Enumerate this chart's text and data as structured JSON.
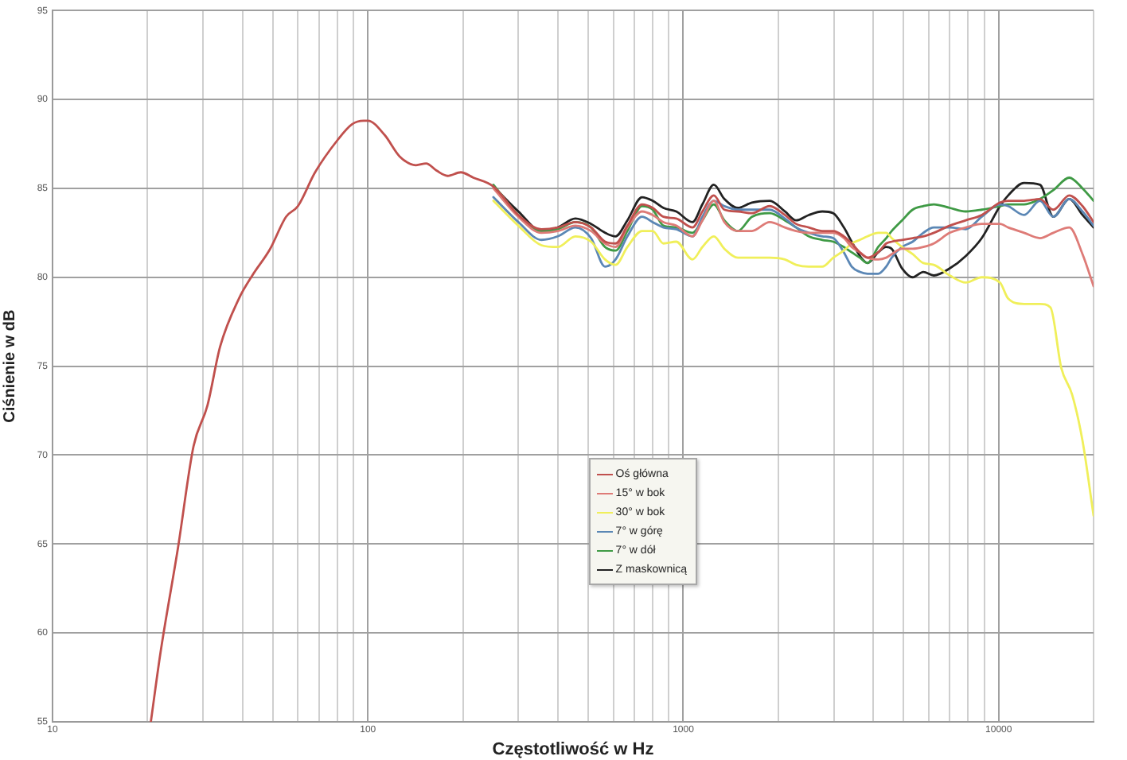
{
  "chart_data": {
    "type": "line",
    "xlabel": "Częstotliwość w Hz",
    "ylabel": "Ciśnienie w dB",
    "log": "x",
    "xlim": [
      10,
      20000
    ],
    "ylim": [
      55,
      95
    ],
    "xticks": [
      10,
      {
        "value": 20,
        "label": null
      },
      {
        "value": 30,
        "label": null
      },
      {
        "value": 40,
        "label": null
      },
      {
        "value": 50,
        "label": null
      },
      {
        "value": 60,
        "label": null
      },
      {
        "value": 70,
        "label": null
      },
      {
        "value": 80,
        "label": null
      },
      {
        "value": 90,
        "label": null
      },
      100,
      {
        "value": 200,
        "label": null
      },
      {
        "value": 300,
        "label": null
      },
      {
        "value": 400,
        "label": null
      },
      {
        "value": 500,
        "label": null
      },
      {
        "value": 600,
        "label": null
      },
      {
        "value": 700,
        "label": null
      },
      {
        "value": 800,
        "label": null
      },
      {
        "value": 900,
        "label": null
      },
      1000,
      {
        "value": 2000,
        "label": null
      },
      {
        "value": 3000,
        "label": null
      },
      {
        "value": 4000,
        "label": null
      },
      {
        "value": 5000,
        "label": null
      },
      {
        "value": 6000,
        "label": null
      },
      {
        "value": 7000,
        "label": null
      },
      {
        "value": 8000,
        "label": null
      },
      {
        "value": 9000,
        "label": null
      },
      10000,
      {
        "value": 20000,
        "label": null
      }
    ],
    "yticks": [
      55,
      60,
      65,
      70,
      75,
      80,
      85,
      90,
      95
    ],
    "grid": true,
    "legend": "center",
    "marker": "none",
    "line_style": "solid",
    "series": [
      {
        "name": "Oś główna",
        "color": "#c0504d",
        "x": [
          20.5,
          22,
          25,
          28,
          31,
          34,
          39,
          43,
          49,
          55,
          60,
          68,
          80,
          89,
          97,
          100,
          113,
          126,
          142,
          153,
          165,
          179,
          197,
          216,
          250,
          300,
          355,
          400,
          455,
          510,
          565,
          610,
          665,
          740,
          800,
          865,
          950,
          1070,
          1150,
          1250,
          1350,
          1490,
          1650,
          1880,
          2100,
          2280,
          2500,
          2760,
          2990,
          3230,
          3420,
          3630,
          3840,
          4150,
          4400,
          4580,
          4940,
          5340,
          5770,
          6230,
          7000,
          7870,
          8840,
          10100,
          10720,
          12040,
          13520,
          14910,
          16750,
          18450,
          20000
        ],
        "values": [
          55,
          58.9,
          64.8,
          70.5,
          72.8,
          76.1,
          78.8,
          80.1,
          81.6,
          83.4,
          84,
          85.9,
          87.7,
          88.6,
          88.8,
          88.8,
          88,
          86.8,
          86.3,
          86.4,
          86,
          85.7,
          85.9,
          85.6,
          85.1,
          83.5,
          82.7,
          82.8,
          83.1,
          82.8,
          82,
          81.9,
          82.9,
          84.1,
          83.9,
          83.4,
          83.3,
          82.8,
          83.7,
          84.6,
          83.8,
          83.7,
          83.6,
          84,
          83.5,
          83,
          82.8,
          82.6,
          82.6,
          82.3,
          81.9,
          81.4,
          81.1,
          81.4,
          81.9,
          82,
          82.1,
          82.2,
          82.3,
          82.5,
          82.9,
          83.2,
          83.5,
          84.2,
          84.3,
          84.3,
          84.4,
          83.8,
          84.6,
          84,
          83.1
        ]
      },
      {
        "name": "15° w bok",
        "color": "#de7b77",
        "x": [
          250,
          300,
          355,
          400,
          455,
          510,
          565,
          610,
          665,
          740,
          800,
          865,
          950,
          1070,
          1150,
          1250,
          1350,
          1490,
          1650,
          1880,
          2100,
          2280,
          2500,
          2760,
          2990,
          3230,
          3420,
          3630,
          3840,
          4150,
          4400,
          4580,
          4940,
          5340,
          5770,
          6230,
          7000,
          7870,
          8840,
          10100,
          10720,
          12040,
          13520,
          14910,
          16750,
          18450,
          20000
        ],
        "values": [
          85,
          83.4,
          82.5,
          82.6,
          82.9,
          82.6,
          81.9,
          81.7,
          82.8,
          83.7,
          83.5,
          83.1,
          82.9,
          82.3,
          83.2,
          84.3,
          83.1,
          82.6,
          82.6,
          83.1,
          82.8,
          82.6,
          82.5,
          82.5,
          82.5,
          82.2,
          81.7,
          81.4,
          81.1,
          81,
          81.1,
          81.3,
          81.6,
          81.6,
          81.7,
          81.9,
          82.5,
          82.8,
          83,
          83,
          82.8,
          82.5,
          82.2,
          82.5,
          82.8,
          81.3,
          79.5
        ]
      },
      {
        "name": "30° w bok",
        "color": "#f0ef5a",
        "x": [
          250,
          300,
          355,
          400,
          455,
          510,
          565,
          610,
          665,
          740,
          800,
          865,
          950,
          1070,
          1150,
          1250,
          1350,
          1490,
          1650,
          1880,
          2100,
          2280,
          2500,
          2760,
          2990,
          3230,
          3420,
          3630,
          3840,
          4150,
          4400,
          4580,
          4940,
          5340,
          5770,
          6230,
          7000,
          7870,
          8840,
          10100,
          10720,
          12040,
          13520,
          14600,
          15800,
          17100,
          18450,
          20000
        ],
        "values": [
          84.3,
          82.9,
          81.8,
          81.7,
          82.3,
          82,
          81,
          80.7,
          81.7,
          82.6,
          82.6,
          81.9,
          82,
          81,
          81.7,
          82.3,
          81.6,
          81.1,
          81.1,
          81.1,
          81,
          80.7,
          80.6,
          80.6,
          81.1,
          81.5,
          81.9,
          82.1,
          82.3,
          82.5,
          82.5,
          82.2,
          81.7,
          81.3,
          80.8,
          80.7,
          80.1,
          79.7,
          80,
          79.7,
          78.8,
          78.5,
          78.5,
          78.3,
          74.9,
          73.4,
          70.8,
          66.6
        ]
      },
      {
        "name": "7° w górę",
        "color": "#5b87b5",
        "x": [
          250,
          300,
          355,
          400,
          455,
          510,
          565,
          610,
          665,
          740,
          800,
          865,
          950,
          1070,
          1150,
          1250,
          1350,
          1490,
          1650,
          1880,
          2100,
          2280,
          2500,
          2760,
          2990,
          3230,
          3420,
          3630,
          3840,
          4150,
          4400,
          4580,
          4940,
          5340,
          5770,
          6230,
          7000,
          7870,
          8840,
          10100,
          10720,
          12040,
          13520,
          14910,
          16750,
          18450,
          20000
        ],
        "values": [
          84.5,
          83.1,
          82.1,
          82.3,
          82.8,
          82.2,
          80.6,
          81,
          82.3,
          83.4,
          83.1,
          82.8,
          82.7,
          82.3,
          83.4,
          84.3,
          84,
          83.8,
          83.8,
          83.8,
          83.3,
          82.8,
          82.5,
          82.3,
          82.2,
          81.4,
          80.6,
          80.3,
          80.2,
          80.2,
          80.6,
          81.1,
          81.7,
          82,
          82.5,
          82.8,
          82.8,
          82.7,
          83.4,
          84.1,
          84,
          83.5,
          84.3,
          83.4,
          84.4,
          83.7,
          82.9
        ]
      },
      {
        "name": "7° w dół",
        "color": "#3f9a45",
        "x": [
          250,
          300,
          355,
          400,
          455,
          510,
          565,
          610,
          665,
          740,
          800,
          865,
          950,
          1070,
          1150,
          1250,
          1350,
          1490,
          1650,
          1880,
          2100,
          2280,
          2500,
          2760,
          2990,
          3230,
          3420,
          3630,
          3840,
          4150,
          4400,
          4580,
          4940,
          5340,
          5770,
          6230,
          7000,
          7870,
          8840,
          10100,
          10720,
          12040,
          13520,
          14910,
          16750,
          18450,
          20000
        ],
        "values": [
          85.2,
          83.5,
          82.6,
          82.7,
          83.1,
          82.8,
          81.7,
          81.5,
          82.6,
          84,
          83.8,
          82.9,
          82.8,
          82.5,
          83.2,
          84.1,
          83.2,
          82.6,
          83.4,
          83.6,
          83.2,
          82.8,
          82.3,
          82.1,
          82,
          81.7,
          81.4,
          81.1,
          80.8,
          81.7,
          82.2,
          82.6,
          83.2,
          83.8,
          84,
          84.1,
          83.9,
          83.7,
          83.8,
          84,
          84.1,
          84.1,
          84.4,
          84.9,
          85.6,
          85,
          84.3
        ]
      },
      {
        "name": "Z maskownicą",
        "color": "#222222",
        "x": [
          250,
          300,
          355,
          400,
          455,
          510,
          565,
          610,
          665,
          740,
          800,
          865,
          950,
          1070,
          1150,
          1250,
          1350,
          1490,
          1650,
          1880,
          2100,
          2280,
          2500,
          2760,
          2990,
          3230,
          3420,
          3630,
          3840,
          4150,
          4400,
          4580,
          4940,
          5340,
          5770,
          6230,
          7000,
          7870,
          8840,
          10100,
          10720,
          12040,
          13520,
          14910,
          16750,
          18450,
          20000
        ],
        "values": [
          85.1,
          83.7,
          82.6,
          82.8,
          83.3,
          83,
          82.5,
          82.3,
          83.2,
          84.5,
          84.3,
          83.9,
          83.7,
          83.1,
          84.1,
          85.2,
          84.4,
          83.9,
          84.2,
          84.3,
          83.7,
          83.2,
          83.5,
          83.7,
          83.6,
          82.8,
          82,
          81.2,
          80.8,
          81.4,
          81.7,
          81.6,
          80.5,
          80,
          80.3,
          80.1,
          80.5,
          81.2,
          82.2,
          84,
          84.6,
          85.3,
          85.2,
          83.4,
          84.4,
          83.5,
          82.8
        ]
      }
    ]
  }
}
